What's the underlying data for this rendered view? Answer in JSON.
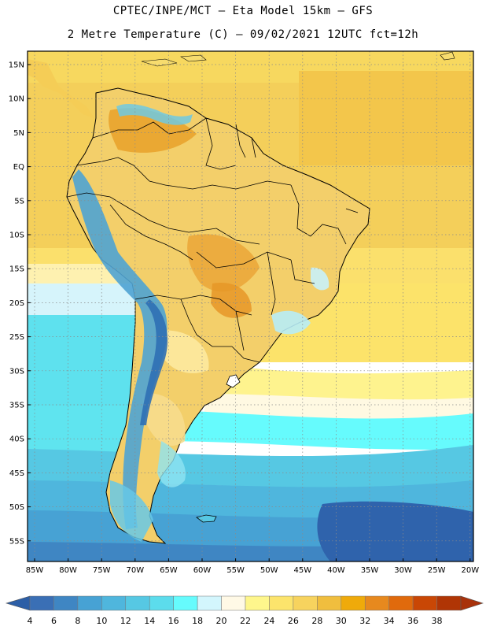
{
  "header": {
    "line1": "CPTEC/INPE/MCT –  Eta Model 15km – GFS",
    "line2": "2 Metre Temperature (C) – 09/02/2021 12UTC fct=12h"
  },
  "map": {
    "lat_labels": [
      "15N",
      "10N",
      "5N",
      "EQ",
      "5S",
      "10S",
      "15S",
      "20S",
      "25S",
      "30S",
      "35S",
      "40S",
      "45S",
      "50S",
      "55S"
    ],
    "lon_labels": [
      "85W",
      "80W",
      "75W",
      "70W",
      "65W",
      "60W",
      "55W",
      "50W",
      "45W",
      "40W",
      "35W",
      "30W",
      "25W",
      "20W"
    ]
  },
  "colorbar": {
    "labels": [
      "4",
      "6",
      "8",
      "10",
      "12",
      "14",
      "16",
      "18",
      "20",
      "22",
      "24",
      "26",
      "28",
      "30",
      "32",
      "34",
      "36",
      "38"
    ],
    "colors": [
      "#3a6fb5",
      "#3f86c3",
      "#47a2d4",
      "#4fb6dd",
      "#56c8e3",
      "#5cdcec",
      "#66fbfd",
      "#d3f6fd",
      "#fff9e6",
      "#fef68c",
      "#fce46c",
      "#f7d35e",
      "#f0be3e",
      "#efaa0a",
      "#e7891e",
      "#e06a0c",
      "#c94705",
      "#b03505"
    ],
    "under_color": "#2c5ea6",
    "over_color": "#a8320b"
  }
}
